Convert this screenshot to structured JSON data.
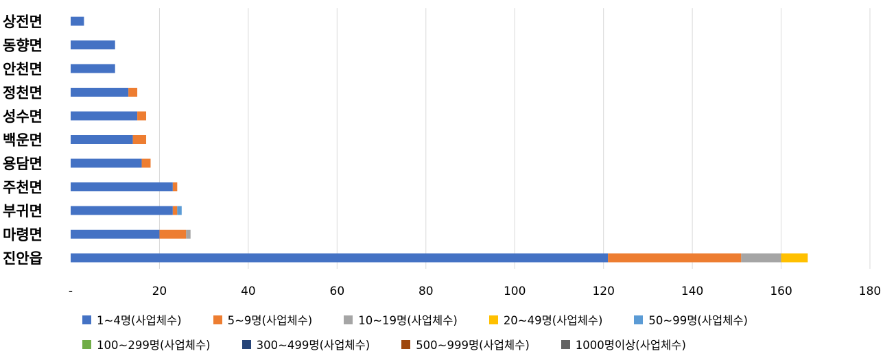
{
  "chart_data": {
    "type": "bar",
    "orientation": "horizontal",
    "stacked": true,
    "categories": [
      "상전면",
      "동향면",
      "안천면",
      "정천면",
      "성수면",
      "백운면",
      "용담면",
      "주천면",
      "부귀면",
      "마령면",
      "진안읍"
    ],
    "series": [
      {
        "name": "1~4명(사업체수)",
        "color": "#4472C4",
        "values": [
          3,
          10,
          10,
          13,
          15,
          14,
          16,
          23,
          23,
          20,
          121
        ]
      },
      {
        "name": "5~9명(사업체수)",
        "color": "#ED7D31",
        "values": [
          0,
          0,
          0,
          2,
          2,
          3,
          2,
          1,
          1,
          6,
          30
        ]
      },
      {
        "name": "10~19명(사업체수)",
        "color": "#A5A5A5",
        "values": [
          0,
          0,
          0,
          0,
          0,
          0,
          0,
          0,
          0,
          1,
          9
        ]
      },
      {
        "name": "20~49명(사업체수)",
        "color": "#FFC000",
        "values": [
          0,
          0,
          0,
          0,
          0,
          0,
          0,
          0,
          0,
          0,
          6
        ]
      },
      {
        "name": "50~99명(사업체수)",
        "color": "#5B9BD5",
        "values": [
          0,
          0,
          0,
          0,
          0,
          0,
          0,
          0,
          1,
          0,
          0
        ]
      },
      {
        "name": "100~299명(사업체수)",
        "color": "#70AD47",
        "values": [
          0,
          0,
          0,
          0,
          0,
          0,
          0,
          0,
          0,
          0,
          0
        ]
      },
      {
        "name": "300~499명(사업체수)",
        "color": "#264478",
        "values": [
          0,
          0,
          0,
          0,
          0,
          0,
          0,
          0,
          0,
          0,
          0
        ]
      },
      {
        "name": "500~999명(사업체수)",
        "color": "#9E480E",
        "values": [
          0,
          0,
          0,
          0,
          0,
          0,
          0,
          0,
          0,
          0,
          0
        ]
      },
      {
        "name": "1000명이상(사업체수)",
        "color": "#636363",
        "values": [
          0,
          0,
          0,
          0,
          0,
          0,
          0,
          0,
          0,
          0,
          0
        ]
      }
    ],
    "x_ticks": [
      "-",
      "20",
      "40",
      "60",
      "80",
      "100",
      "120",
      "140",
      "160",
      "180"
    ],
    "xlim": [
      0,
      180
    ],
    "grid": true,
    "legend_position": "bottom"
  }
}
